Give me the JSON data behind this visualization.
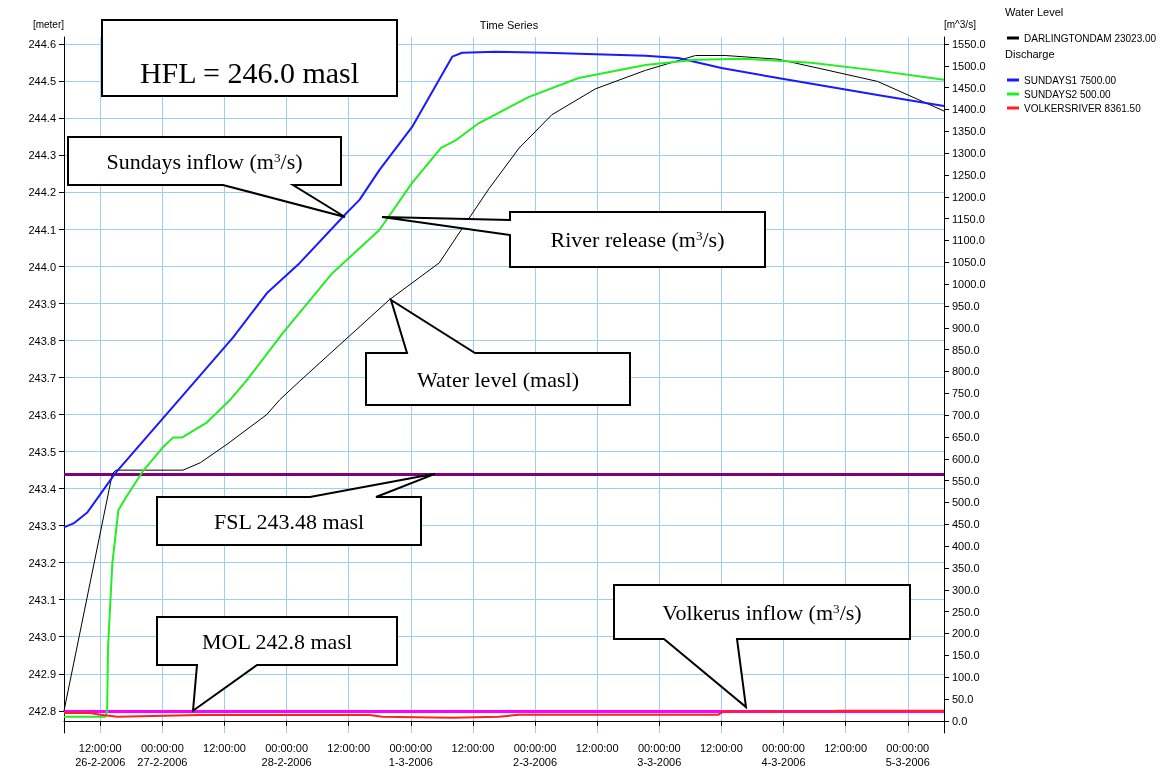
{
  "chart_data": {
    "type": "line",
    "title": "Time Series",
    "ylabel": "[meter]",
    "y2label": "[m^3/s]",
    "xlim": [
      "2006-02-26T05:00",
      "2006-03-05T07:00"
    ],
    "xticks": [
      {
        "value": "2006-02-26T12:00",
        "label": "12:00:00\n26-2-2006"
      },
      {
        "value": "2006-02-27T00:00",
        "label": "00:00:00\n27-2-2006"
      },
      {
        "value": "2006-02-27T12:00",
        "label": "12:00:00"
      },
      {
        "value": "2006-02-28T00:00",
        "label": "00:00:00\n28-2-2006"
      },
      {
        "value": "2006-02-28T12:00",
        "label": "12:00:00"
      },
      {
        "value": "2006-03-01T00:00",
        "label": "00:00:00\n1-3-2006"
      },
      {
        "value": "2006-03-01T12:00",
        "label": "12:00:00"
      },
      {
        "value": "2006-03-02T00:00",
        "label": "00:00:00\n2-3-2006"
      },
      {
        "value": "2006-03-02T12:00",
        "label": "12:00:00"
      },
      {
        "value": "2006-03-03T00:00",
        "label": "00:00:00\n3-3-2006"
      },
      {
        "value": "2006-03-03T12:00",
        "label": "12:00:00"
      },
      {
        "value": "2006-03-04T00:00",
        "label": "00:00:00\n4-3-2006"
      },
      {
        "value": "2006-03-04T12:00",
        "label": "12:00:00"
      },
      {
        "value": "2006-03-05T00:00",
        "label": "00:00:00\n5-3-2006"
      }
    ],
    "ylim": [
      242.74,
      244.62
    ],
    "yticks": [
      242.8,
      242.9,
      {
        "value": 243,
        "label": "243.0"
      },
      243.1,
      243.2,
      243.3,
      243.4,
      243.5,
      243.6,
      243.7,
      243.8,
      243.9,
      {
        "value": 244,
        "label": "244.0"
      },
      244.1,
      244.2,
      244.3,
      244.4,
      244.5,
      244.6
    ],
    "y2lim": [
      -28,
      1566
    ],
    "y2ticks": [
      {
        "value": 0,
        "label": "0.0"
      },
      {
        "value": 50,
        "label": "50.0"
      },
      {
        "value": 100,
        "label": "100.0"
      },
      {
        "value": 150,
        "label": "150.0"
      },
      {
        "value": 200,
        "label": "200.0"
      },
      {
        "value": 250,
        "label": "250.0"
      },
      {
        "value": 300,
        "label": "300.0"
      },
      {
        "value": 350,
        "label": "350.0"
      },
      {
        "value": 400,
        "label": "400.0"
      },
      {
        "value": 450,
        "label": "450.0"
      },
      {
        "value": 500,
        "label": "500.0"
      },
      {
        "value": 550,
        "label": "550.0"
      },
      {
        "value": 600,
        "label": "600.0"
      },
      {
        "value": 650,
        "label": "650.0"
      },
      {
        "value": 700,
        "label": "700.0"
      },
      {
        "value": 750,
        "label": "750.0"
      },
      {
        "value": 800,
        "label": "800.0"
      },
      {
        "value": 850,
        "label": "850.0"
      },
      {
        "value": 900,
        "label": "900.0"
      },
      {
        "value": 950,
        "label": "950.0"
      },
      {
        "value": 1000,
        "label": "1000.0"
      },
      {
        "value": 1050,
        "label": "1050.0"
      },
      {
        "value": 1100,
        "label": "1100.0"
      },
      {
        "value": 1150,
        "label": "1150.0"
      },
      {
        "value": 1200,
        "label": "1200.0"
      },
      {
        "value": 1250,
        "label": "1250.0"
      },
      {
        "value": 1300,
        "label": "1300.0"
      },
      {
        "value": 1350,
        "label": "1350.0"
      },
      {
        "value": 1400,
        "label": "1400.0"
      },
      {
        "value": 1450,
        "label": "1450.0"
      },
      {
        "value": 1500,
        "label": "1500.0"
      },
      {
        "value": 1550,
        "label": "1550.0"
      }
    ],
    "grid": true,
    "legend": "right",
    "marker": "none",
    "series": [
      {
        "name": "DARLINGTONDAM 23023.00",
        "color": "#000000",
        "x": [
          "2006-02-26T05:00",
          "2006-02-26T14:20",
          "2006-02-26T15:00",
          "2006-02-27T04:00",
          "2006-02-27T07:20",
          "2006-02-27T12:30",
          "2006-02-27T20:10",
          "2006-02-27T22:40",
          "2006-02-28T02:30",
          "2006-02-28T19:50",
          "2006-03-01T05:30",
          "2006-03-01T08:50",
          "2006-03-01T15:05",
          "2006-03-01T20:55",
          "2006-03-02T03:15",
          "2006-03-02T11:40",
          "2006-03-02T21:20",
          "2006-03-03T07:00",
          "2006-03-03T12:45",
          "2006-03-03T22:55",
          "2006-03-04T08:35",
          "2006-03-04T18:10",
          "2006-03-05T07:00"
        ],
        "values": [
          242.8,
          243.44,
          243.45,
          243.45,
          243.47,
          243.52,
          243.6,
          243.64,
          243.69,
          243.91,
          244.01,
          244.08,
          244.21,
          244.32,
          244.41,
          244.48,
          244.53,
          244.57,
          244.57,
          244.56,
          244.53,
          244.5,
          244.42
        ]
      },
      {
        "name": "SUNDAYS1 7500.00",
        "color": "#1a1aff",
        "axis": "y2",
        "x": [
          "2006-02-26T05:00",
          "2006-02-26T06:50",
          "2006-02-26T09:30",
          "2006-02-26T14:55",
          "2006-02-26T21:35",
          "2006-02-27T03:25",
          "2006-02-27T13:40",
          "2006-02-27T20:10",
          "2006-02-28T02:30",
          "2006-02-28T11:35",
          "2006-02-28T14:05",
          "2006-02-28T17:55",
          "2006-03-01T00:15",
          "2006-03-01T08:00",
          "2006-03-01T09:55",
          "2006-03-01T16:25",
          "2006-03-02T02:05",
          "2006-03-02T21:20",
          "2006-03-03T03:40",
          "2006-03-03T12:00",
          "2006-03-03T22:55",
          "2006-03-04T18:10",
          "2006-03-05T07:00"
        ],
        "values": [
          443,
          452,
          477,
          567,
          658,
          738,
          878,
          979,
          1048,
          1163,
          1193,
          1261,
          1360,
          1521,
          1530,
          1532,
          1530,
          1523,
          1518,
          1495,
          1472,
          1433,
          1408
        ]
      },
      {
        "name": "SUNDAYS2 500.00",
        "color": "#22ee22",
        "axis": "y2",
        "x": [
          "2006-02-26T05:00",
          "2006-02-26T13:00",
          "2006-02-26T13:20",
          "2006-02-26T13:30",
          "2006-02-26T14:20",
          "2006-02-26T15:30",
          "2006-02-26T16:50",
          "2006-02-26T20:20",
          "2006-02-27T00:05",
          "2006-02-27T02:05",
          "2006-02-27T03:50",
          "2006-02-27T08:35",
          "2006-02-27T13:00",
          "2006-02-27T16:20",
          "2006-02-27T23:15",
          "2006-02-28T08:50",
          "2006-02-28T17:55",
          "2006-03-01T00:15",
          "2006-03-01T05:50",
          "2006-03-01T08:45",
          "2006-03-01T13:10",
          "2006-03-01T22:50",
          "2006-03-02T08:25",
          "2006-03-02T21:20",
          "2006-03-03T07:00",
          "2006-03-03T16:35",
          "2006-03-04T05:20",
          "2006-03-04T18:10",
          "2006-03-05T07:00"
        ],
        "values": [
          9,
          9,
          23,
          167,
          360,
          482,
          509,
          573,
          626,
          649,
          649,
          683,
          734,
          780,
          888,
          1025,
          1124,
          1232,
          1312,
          1330,
          1369,
          1429,
          1472,
          1502,
          1514,
          1516,
          1507,
          1489,
          1468
        ]
      },
      {
        "name": "VOLKERSRIVER 8361.50",
        "color": "#ff2020",
        "axis": "y2",
        "x": [
          "2006-02-26T05:00",
          "2006-02-26T10:05",
          "2006-02-26T12:00",
          "2006-02-26T15:20",
          "2006-02-27T07:20",
          "2006-02-28T16:00",
          "2006-02-28T18:30",
          "2006-03-01T08:00",
          "2006-03-01T17:00",
          "2006-03-01T20:55",
          "2006-03-03T11:25",
          "2006-03-03T12:20",
          "2006-03-04T09:30",
          "2006-03-04T10:25",
          "2006-03-05T07:00"
        ],
        "values": [
          18,
          18,
          14,
          9,
          13,
          13,
          9,
          7,
          9,
          14,
          14,
          21,
          21,
          23,
          23
        ]
      }
    ],
    "ref_lines": [
      {
        "axis": "y",
        "value": 243.44,
        "label": "FSL 243.48 masl",
        "color": "#800080"
      },
      {
        "axis": "y",
        "value": 242.8,
        "label": "MOL 242.8 masl",
        "color": "#ff00ff"
      }
    ],
    "annotations": [
      "HFL = 246.0 masl",
      "Sundays inflow (m$^{3}$/s)",
      "River release (m$^{3}$/s)",
      "Water level (masl)",
      "Volkerus inflow (m$^{3}$/s)",
      "Water Level",
      "Discharge"
    ]
  }
}
